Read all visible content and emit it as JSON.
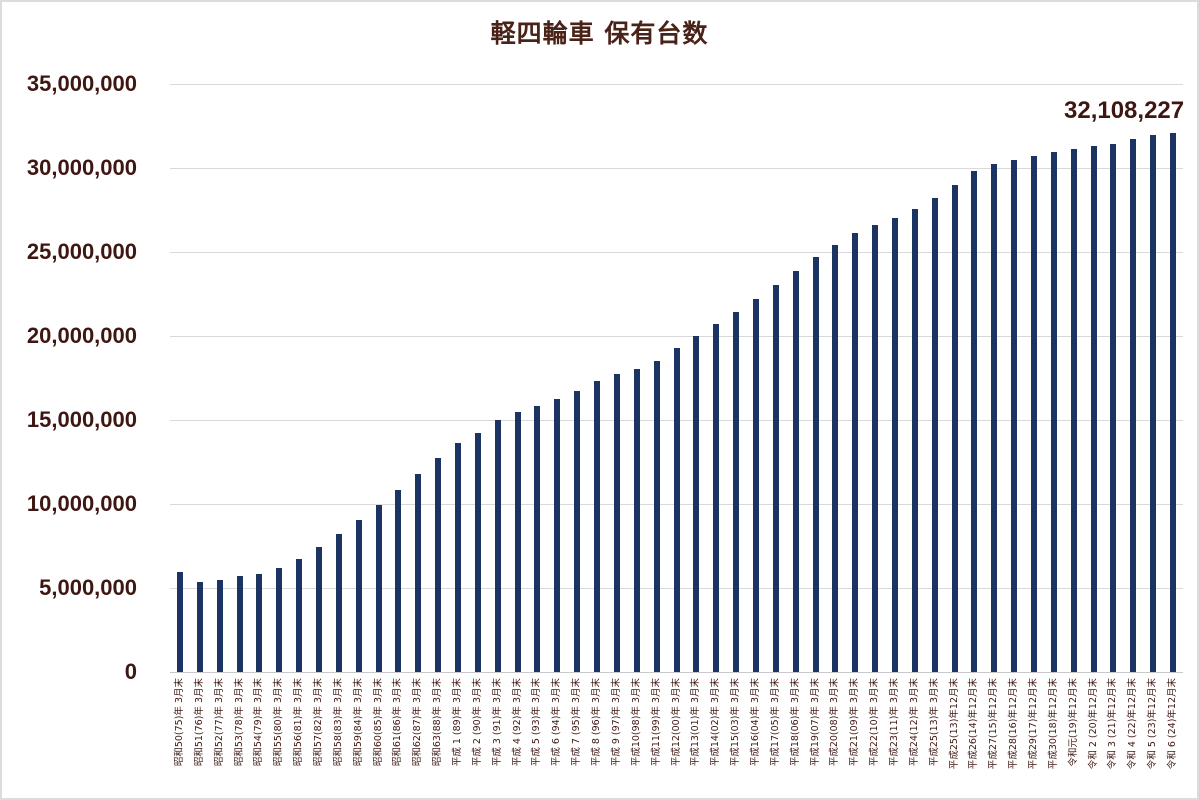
{
  "chart_data": {
    "type": "bar",
    "title": "軽四輪車 保有台数",
    "xlabel": "",
    "ylabel": "",
    "ylim": [
      0,
      35000000
    ],
    "yticks": [
      0,
      5000000,
      10000000,
      15000000,
      20000000,
      25000000,
      30000000,
      35000000
    ],
    "ytick_labels": [
      "0",
      "5,000,000",
      "10,000,000",
      "15,000,000",
      "20,000,000",
      "25,000,000",
      "30,000,000",
      "35,000,000"
    ],
    "grid": true,
    "legend": null,
    "bar_color": "#1c3461",
    "text_color": "#3e1712",
    "annotations": [
      {
        "category_index": 50,
        "text": "32,108,227"
      }
    ],
    "categories": [
      "昭和50(75)年 3月末",
      "昭和51(76)年 3月末",
      "昭和52(77)年 3月末",
      "昭和53(78)年 3月末",
      "昭和54(79)年 3月末",
      "昭和55(80)年 3月末",
      "昭和56(81)年 3月末",
      "昭和57(82)年 3月末",
      "昭和58(83)年 3月末",
      "昭和59(84)年 3月末",
      "昭和60(85)年 3月末",
      "昭和61(86)年 3月末",
      "昭和62(87)年 3月末",
      "昭和63(88)年 3月末",
      "平成 1 (89)年 3月末",
      "平成 2 (90)年 3月末",
      "平成 3 (91)年 3月末",
      "平成 4 (92)年 3月末",
      "平成 5 (93)年 3月末",
      "平成 6 (94)年 3月末",
      "平成 7 (95)年 3月末",
      "平成 8 (96)年 3月末",
      "平成 9 (97)年 3月末",
      "平成10(98)年 3月末",
      "平成11(99)年 3月末",
      "平成12(00)年 3月末",
      "平成13(01)年 3月末",
      "平成14(02)年 3月末",
      "平成15(03)年 3月末",
      "平成16(04)年 3月末",
      "平成17(05)年 3月末",
      "平成18(06)年 3月末",
      "平成19(07)年 3月末",
      "平成20(08)年 3月末",
      "平成21(09)年 3月末",
      "平成22(10)年 3月末",
      "平成23(11)年 3月末",
      "平成24(12)年 3月末",
      "平成25(13)年 3月末",
      "平成25(13)年12月末",
      "平成26(14)年12月末",
      "平成27(15)年12月末",
      "平成28(16)年12月末",
      "平成29(17)年12月末",
      "平成30(18)年12月末",
      "令和元(19)年12月末",
      "令和 2 (20)年12月末",
      "令和 3 (21)年12月末",
      "令和 4 (22)年12月末",
      "令和 5 (23)年12月末",
      "令和 6 (24)年12月末"
    ],
    "values": [
      5970000,
      5370000,
      5460000,
      5690000,
      5810000,
      6210000,
      6710000,
      7420000,
      8230000,
      9070000,
      9960000,
      10830000,
      11800000,
      12740000,
      13650000,
      14250000,
      14980000,
      15480000,
      15850000,
      16270000,
      16750000,
      17300000,
      17720000,
      18050000,
      18510000,
      19270000,
      20000000,
      20710000,
      21440000,
      22210000,
      23060000,
      23870000,
      24710000,
      25390000,
      26110000,
      26590000,
      27000000,
      27560000,
      28190000,
      29010000,
      29820000,
      30260000,
      30500000,
      30700000,
      30950000,
      31130000,
      31290000,
      31430000,
      31710000,
      31950000,
      32108227
    ]
  }
}
